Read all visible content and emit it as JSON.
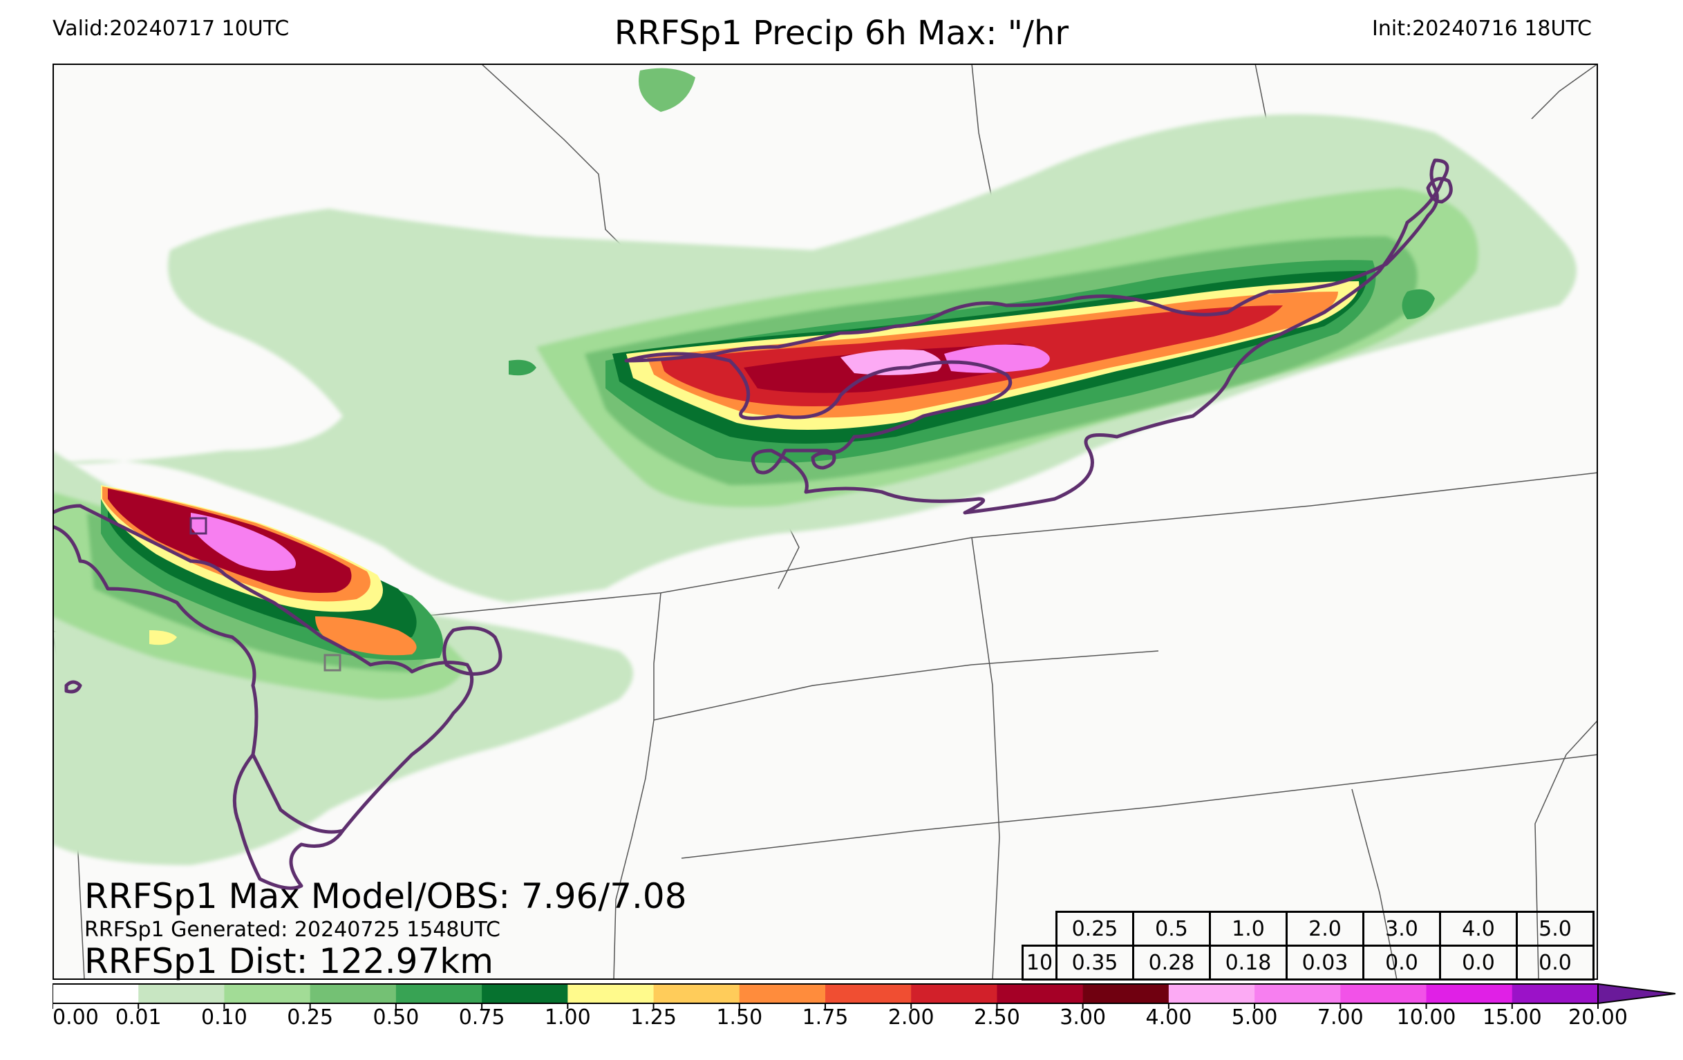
{
  "header": {
    "valid": "Valid:20240717 10UTC",
    "title": "RRFSp1 Precip 6h Max: \"/hr",
    "init": "Init:20240716 18UTC"
  },
  "stats": {
    "max_line": "RRFSp1 Max Model/OBS: 7.96/7.08",
    "generated_line": "RRFSp1 Generated: 20240725 1548UTC",
    "dist_line": "RRFSp1 Dist: 122.97km"
  },
  "threshold_table": {
    "row_label": "10",
    "thresholds": [
      "0.25",
      "0.5",
      "1.0",
      "2.0",
      "3.0",
      "4.0",
      "5.0"
    ],
    "values": [
      "0.35",
      "0.28",
      "0.18",
      "0.03",
      "0.0",
      "0.0",
      "0.0"
    ]
  },
  "colorbar": {
    "ticks": [
      "0.00",
      "0.01",
      "0.10",
      "0.25",
      "0.50",
      "0.75",
      "1.00",
      "1.25",
      "1.50",
      "1.75",
      "2.00",
      "2.50",
      "3.00",
      "4.00",
      "5.00",
      "7.00",
      "10.00",
      "15.00",
      "20.00"
    ],
    "colors": [
      "#ffffff",
      "#c8e6c2",
      "#a2dc96",
      "#74c174",
      "#38a354",
      "#06722f",
      "#fffa8c",
      "#ffcc5a",
      "#ff8c3c",
      "#f04e32",
      "#d2202a",
      "#a50026",
      "#700010",
      "#fcaaf4",
      "#f77ff0",
      "#f252e8",
      "#e020e6",
      "#9b12c8"
    ],
    "extend_color": "#6a1a9a"
  },
  "map": {
    "background": "#fafaf9",
    "obs_contour_color": "#5e2f6e",
    "boundary_color": "#555555"
  }
}
